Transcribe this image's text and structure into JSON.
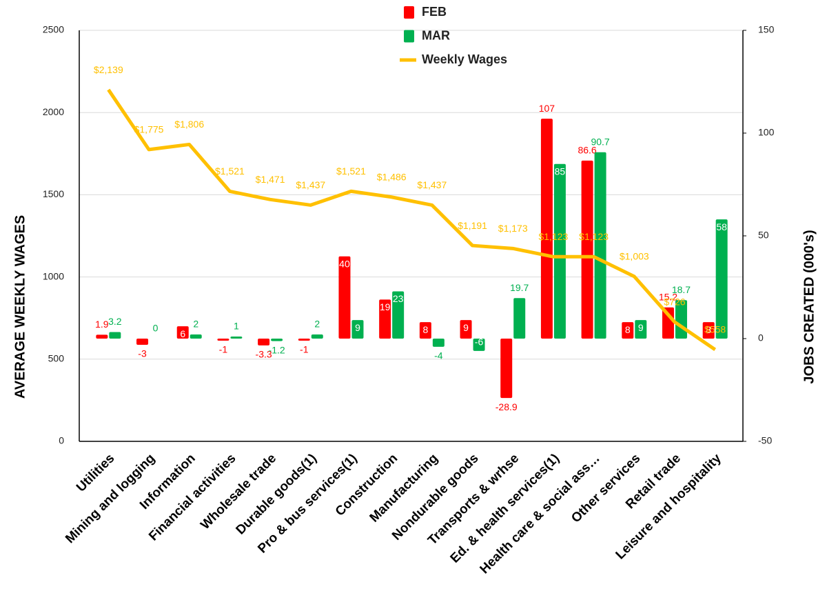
{
  "chart_data": {
    "type": "bar-line",
    "categories": [
      "Utilities",
      "Mining and logging",
      "Information",
      "Financial activities",
      "Wholesale trade",
      "Durable goods(1)",
      "Pro & bus services(1)",
      "Construction",
      "Manufacturing",
      "Nondurable goods",
      "Transports & wrhse",
      "Ed. & health services(1)",
      "Health care & social ass…",
      "Other services",
      "Retail trade",
      "Leisure and hospitality"
    ],
    "y_label": "AVERAGE WEEKLY WAGES",
    "y2_label": "JOBS CREATED (000's)",
    "ylim": [
      0,
      2500
    ],
    "yticks": [
      0,
      500,
      1000,
      1500,
      2000,
      2500
    ],
    "y2lim": [
      -50,
      150
    ],
    "y2ticks": [
      -50,
      0,
      50,
      100,
      150
    ],
    "grid": true,
    "legend": "top",
    "series": [
      {
        "name": "FEB",
        "type": "bar",
        "axis": "y2",
        "color": "#ff0000",
        "values": [
          1.9,
          -3,
          6,
          -1,
          -3.3,
          -1,
          40,
          19,
          8,
          9,
          -28.9,
          107,
          86.6,
          8,
          15.2,
          8
        ]
      },
      {
        "name": "MAR",
        "type": "bar",
        "axis": "y2",
        "color": "#00b050",
        "values": [
          3.2,
          0,
          2,
          1,
          -1.2,
          2,
          9,
          23,
          -4,
          -6,
          19.7,
          85,
          90.7,
          9,
          18.7,
          58
        ]
      },
      {
        "name": "Weekly Wages",
        "type": "line",
        "color": "#ffc000",
        "values": [
          2139,
          1775,
          1806,
          1521,
          1471,
          1437,
          1521,
          1486,
          1437,
          1191,
          1173,
          1123,
          1123,
          1003,
          726,
          558
        ],
        "value_labels": [
          "$2,139",
          "$1,775",
          "$1,806",
          "$1,521",
          "$1,471",
          "$1,437",
          "$1,521",
          "$1,486",
          "$1,437",
          "$1,191",
          "$1,173",
          "$1,123",
          "$1,123",
          "$1,003",
          "$726",
          "$558"
        ]
      }
    ]
  }
}
